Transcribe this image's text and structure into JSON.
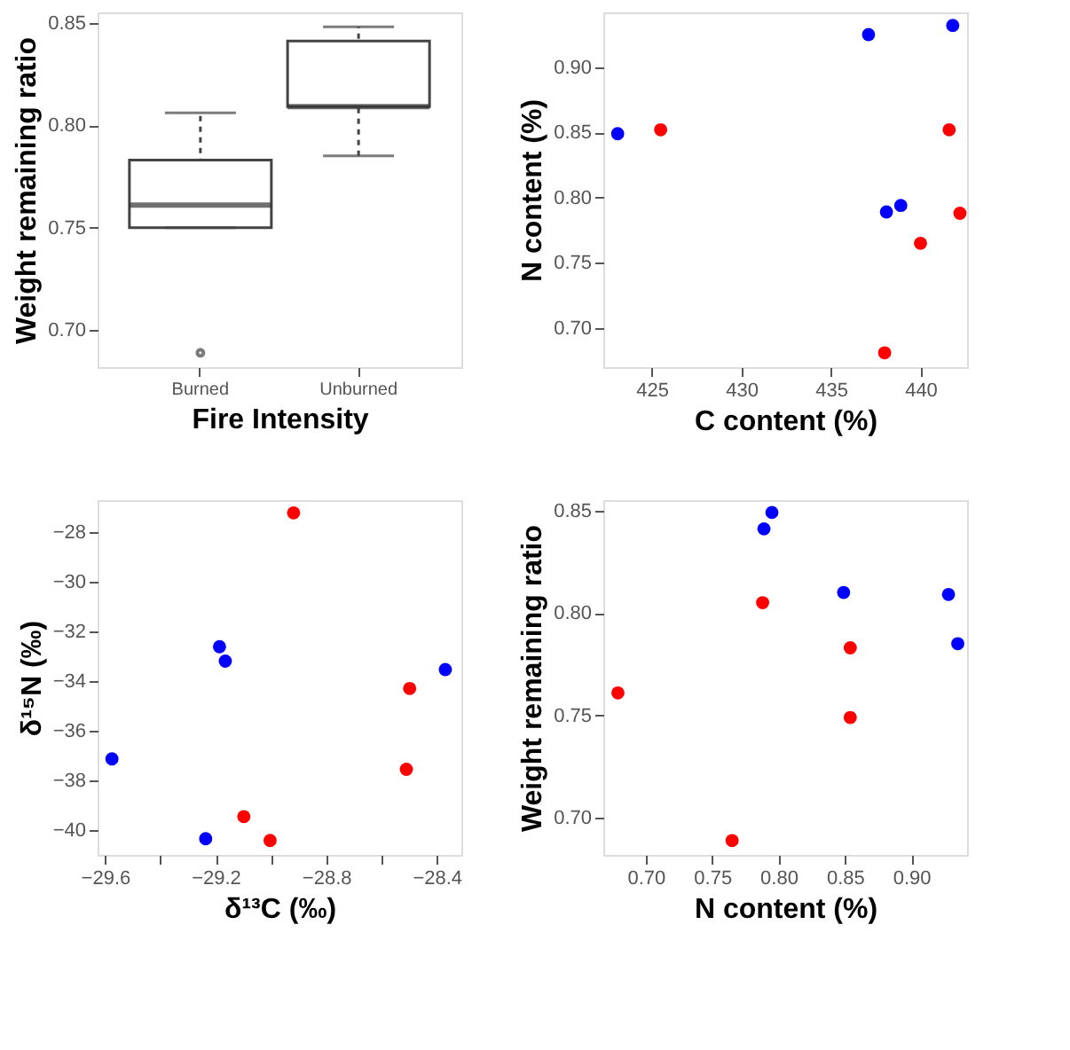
{
  "chart_data": [
    {
      "type": "box",
      "xlabel": "Fire Intensity",
      "ylabel": "Weight remaining ratio",
      "categories": [
        "Burned",
        "Unburned"
      ],
      "boxes": [
        {
          "low": 0.75,
          "q1": 0.75,
          "median": 0.761,
          "q3": 0.783,
          "high": 0.806,
          "outliers": [
            0.689
          ]
        },
        {
          "low": 0.785,
          "q1": 0.809,
          "median": 0.809,
          "q3": 0.841,
          "high": 0.848
        }
      ],
      "ylim": [
        0.682,
        0.855
      ],
      "yticks": [
        {
          "value": 0.7,
          "label": "0.70"
        },
        0.75,
        {
          "value": 0.8,
          "label": "0.80"
        },
        0.85
      ],
      "grid": false
    },
    {
      "type": "scatter",
      "xlabel": "C content (%)",
      "ylabel": "N content (%)",
      "marker": "circle",
      "grid": false,
      "xlim": [
        422.3,
        442.6
      ],
      "xticks": [
        425,
        430,
        435,
        440
      ],
      "ylim": [
        0.67,
        0.942
      ],
      "yticks": [
        {
          "value": 0.7,
          "label": "0.70"
        },
        0.75,
        {
          "value": 0.8,
          "label": "0.80"
        },
        0.85,
        {
          "value": 0.9,
          "label": "0.90"
        }
      ],
      "series": [
        {
          "color": "#0000ff",
          "x": [
            423.1,
            437.1,
            441.8,
            438.1,
            438.9
          ],
          "values": [
            0.849,
            0.925,
            0.932,
            0.789,
            0.794
          ]
        },
        {
          "color": "#ff0000",
          "x": [
            425.5,
            441.6,
            442.2,
            440.0,
            438.0
          ],
          "values": [
            0.852,
            0.852,
            0.788,
            0.765,
            0.681
          ]
        }
      ]
    },
    {
      "type": "scatter",
      "xlabel": "δ¹³C (‰)",
      "ylabel": "δ¹⁵N (‰)",
      "marker": "circle",
      "grid": false,
      "xlim": [
        -29.627,
        -28.311
      ],
      "xticks": [
        -29.6,
        {
          "value": -29.4,
          "label": null
        },
        -29.2,
        {
          "value": -29.0,
          "label": null
        },
        -28.8,
        {
          "value": -28.6,
          "label": null
        },
        -28.4
      ],
      "ylim": [
        -40.99,
        -26.73
      ],
      "yticks": [
        -40,
        -38,
        -36,
        -34,
        -32,
        -30,
        -28
      ],
      "series": [
        {
          "color": "#0000ff",
          "x": [
            -29.186,
            -29.165,
            -28.369,
            -29.575,
            -29.236
          ],
          "values": [
            -32.62,
            -33.2,
            -33.54,
            -37.13,
            -40.34
          ]
        },
        {
          "color": "#ff0000",
          "x": [
            -28.918,
            -28.498,
            -28.51,
            -29.098,
            -29.003
          ],
          "values": [
            -27.24,
            -34.3,
            -37.55,
            -39.45,
            -40.41
          ]
        }
      ]
    },
    {
      "type": "scatter",
      "xlabel": "N content (%)",
      "ylabel": "Weight remaining ratio",
      "marker": "circle",
      "grid": false,
      "xlim": [
        0.668,
        0.942
      ],
      "xticks": [
        {
          "value": 0.7,
          "label": "0.70"
        },
        0.75,
        {
          "value": 0.8,
          "label": "0.80"
        },
        0.85,
        {
          "value": 0.9,
          "label": "0.90"
        }
      ],
      "ylim": [
        0.682,
        0.855
      ],
      "yticks": [
        {
          "value": 0.7,
          "label": "0.70"
        },
        0.75,
        {
          "value": 0.8,
          "label": "0.80"
        },
        0.85
      ],
      "series": [
        {
          "color": "#0000ff",
          "x": [
            0.789,
            0.795,
            0.849,
            0.928,
            0.935
          ],
          "values": [
            0.841,
            0.849,
            0.81,
            0.809,
            0.785
          ]
        },
        {
          "color": "#ff0000",
          "x": [
            0.788,
            0.854,
            0.854,
            0.679,
            0.765
          ],
          "values": [
            0.805,
            0.783,
            0.749,
            0.761,
            0.689
          ]
        }
      ]
    }
  ]
}
